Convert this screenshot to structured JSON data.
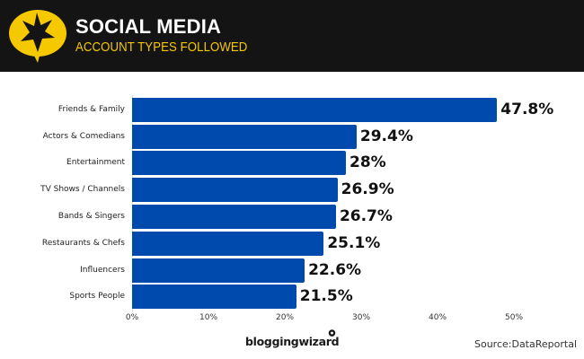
{
  "header": {
    "title": "SOCIAL MEDIA",
    "subtitle": "ACCOUNT TYPES FOLLOWED",
    "logo_icon": "star-speech-bubble-icon",
    "background_color": "#141414",
    "accent_color": "#f5c800"
  },
  "footer": {
    "brand": "bloggingwizard",
    "source": "Source:DataReportal"
  },
  "chart_data": {
    "type": "bar",
    "orientation": "horizontal",
    "title": "SOCIAL MEDIA",
    "subtitle": "ACCOUNT TYPES FOLLOWED",
    "xlabel": "",
    "ylabel": "",
    "categories": [
      "Friends & Family",
      "Actors & Comedians",
      "Entertainment",
      "TV Shows / Channels",
      "Bands & Singers",
      "Restaurants & Chefs",
      "Influencers",
      "Sports People"
    ],
    "values": [
      47.8,
      29.4,
      28,
      26.9,
      26.7,
      25.1,
      22.6,
      21.5
    ],
    "value_labels": [
      "47.8%",
      "29.4%",
      "28%",
      "26.9%",
      "26.7%",
      "25.1%",
      "22.6%",
      "21.5%"
    ],
    "x_ticks": [
      "0%",
      "10%",
      "20%",
      "30%",
      "40%",
      "50%"
    ],
    "xlim": [
      0,
      50
    ],
    "grid": false,
    "legend": "none",
    "bar_color": "#004aad"
  }
}
